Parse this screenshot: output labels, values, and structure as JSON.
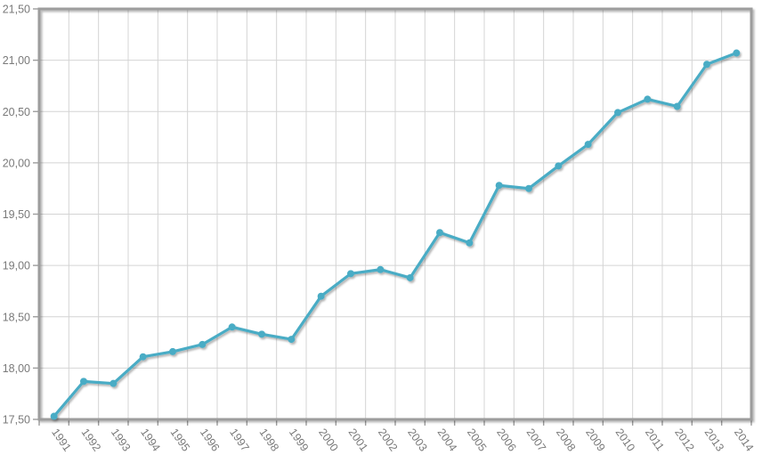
{
  "page": {
    "background": "#FFFFFF"
  },
  "chart_data": {
    "type": "line",
    "title": "",
    "xlabel": "",
    "ylabel": "",
    "categories": [
      "1991",
      "1992",
      "1993",
      "1994",
      "1995",
      "1996",
      "1997",
      "1998",
      "1999",
      "2000",
      "2001",
      "2002",
      "2003",
      "2004",
      "2005",
      "2006",
      "2007",
      "2008",
      "2009",
      "2010",
      "2011",
      "2012",
      "2013",
      "2014"
    ],
    "values": [
      17.53,
      17.87,
      17.85,
      18.11,
      18.16,
      18.23,
      18.4,
      18.33,
      18.28,
      18.7,
      18.92,
      18.96,
      18.88,
      19.32,
      19.22,
      19.78,
      19.75,
      19.97,
      20.18,
      20.49,
      20.62,
      20.55,
      20.96,
      21.07
    ],
    "ylim": [
      17.5,
      21.5
    ],
    "y_tick_step": 0.5,
    "y_tick_labels": [
      "17,50",
      "18,00",
      "18,50",
      "19,00",
      "19,50",
      "20,00",
      "20,50",
      "21,00",
      "21,50"
    ],
    "decimal_separator": ",",
    "grid": {
      "horizontal": true,
      "vertical": true
    },
    "legend_position": "none",
    "x_tick_label_rotation_deg": 55,
    "styles": {
      "line_color": "#4AACC5",
      "marker_color": "#4AACC5",
      "marker_radius": 4,
      "line_width": 3.2,
      "grid_color": "#D4D4D4",
      "plot_border_color": "#9D9D9D",
      "tick_color": "#9D9D9D",
      "tick_label_color": "#7A7A7A",
      "background_color": "#FFFFFF"
    }
  }
}
